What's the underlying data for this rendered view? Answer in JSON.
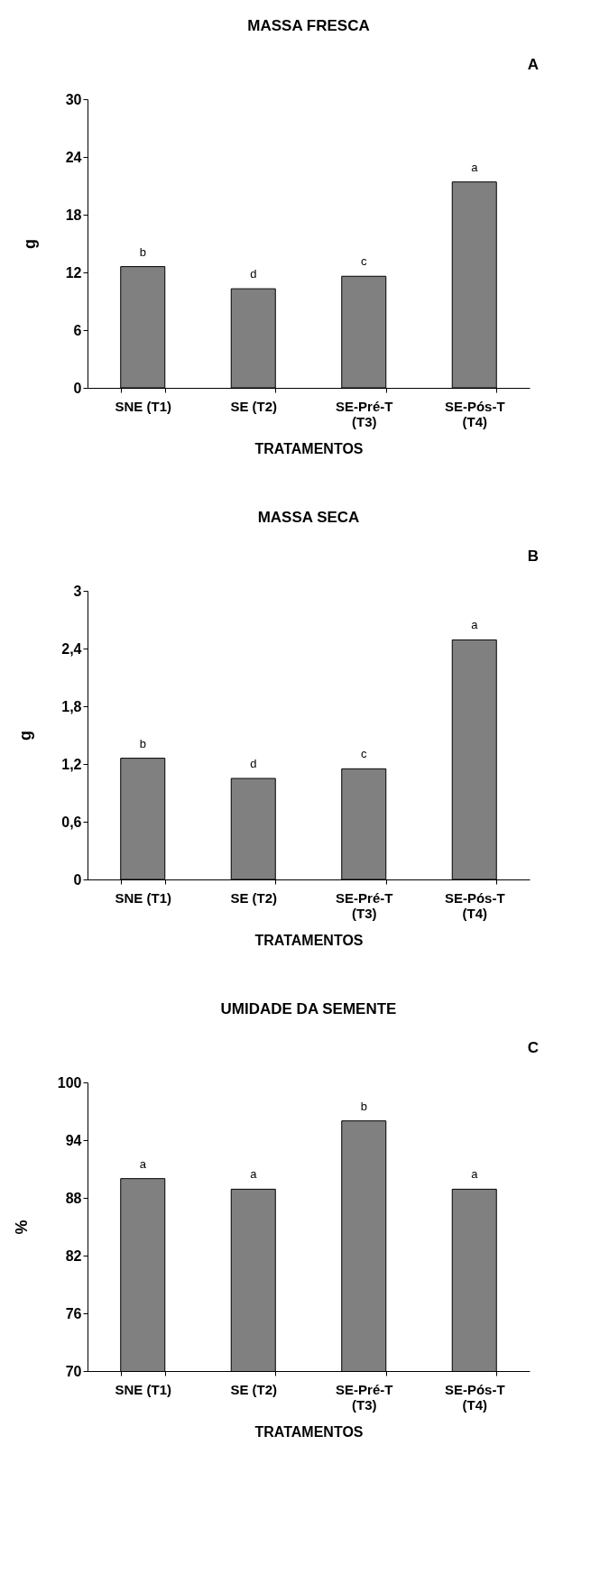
{
  "chart_data": [
    {
      "type": "bar",
      "title": "MASSA FRESCA",
      "xlabel": "TRATAMENTOS",
      "ylabel": "g",
      "categories": [
        "SNE (T1)",
        "SE (T2)",
        "SE-Pré-T (T3)",
        "SE-Pós-T (T4)"
      ],
      "values": [
        12.6,
        10.3,
        11.6,
        21.4
      ],
      "color": "#808080",
      "ylim": [
        0,
        30
      ],
      "yticks": [
        0,
        6,
        12,
        18,
        24,
        30
      ],
      "grid": false,
      "annotations": [
        "A",
        {
          "text": "b",
          "x": "SNE (T1)",
          "y": 12.6
        },
        {
          "text": "d",
          "x": "SE (T2)",
          "y": 10.3
        },
        {
          "text": "c",
          "x": "SE-Pré-T (T3)",
          "y": 11.6
        },
        {
          "text": "a",
          "x": "SE-Pós-T (T4)",
          "y": 21.4
        }
      ]
    },
    {
      "type": "bar",
      "title": "MASSA SECA",
      "xlabel": "TRATAMENTOS",
      "ylabel": "g",
      "categories": [
        "SNE (T1)",
        "SE (T2)",
        "SE-Pré-T (T3)",
        "SE-Pós-T (T4)"
      ],
      "values": [
        1.26,
        1.05,
        1.15,
        2.49
      ],
      "color": "#808080",
      "ylim": [
        0,
        3
      ],
      "yticks": [
        0,
        {
          "value": 0.6,
          "label": "0,6"
        },
        {
          "value": 1.2,
          "label": "1,2"
        },
        {
          "value": 1.8,
          "label": "1,8"
        },
        {
          "value": 2.4,
          "label": "2,4"
        },
        3
      ],
      "grid": false,
      "annotations": [
        "B",
        {
          "text": "b",
          "x": "SNE (T1)",
          "y": 1.26
        },
        {
          "text": "d",
          "x": "SE (T2)",
          "y": 1.05
        },
        {
          "text": "c",
          "x": "SE-Pré-T (T3)",
          "y": 1.15
        },
        {
          "text": "a",
          "x": "SE-Pós-T (T4)",
          "y": 2.49
        }
      ]
    },
    {
      "type": "bar",
      "title": "UMIDADE DA SEMENTE",
      "xlabel": "TRATAMENTOS",
      "ylabel": "%",
      "categories": [
        "SNE (T1)",
        "SE (T2)",
        "SE-Pré-T (T3)",
        "SE-Pós-T (T4)"
      ],
      "values": [
        90.0,
        88.9,
        96.0,
        88.9
      ],
      "color": "#808080",
      "ylim": [
        70,
        100
      ],
      "yticks": [
        70,
        76,
        82,
        88,
        94,
        100
      ],
      "grid": false,
      "annotations": [
        "C",
        {
          "text": "a",
          "x": "SNE (T1)",
          "y": 90.0
        },
        {
          "text": "a",
          "x": "SE (T2)",
          "y": 88.9
        },
        {
          "text": "b",
          "x": "SE-Pré-T (T3)",
          "y": 96.0
        },
        {
          "text": "a",
          "x": "SE-Pós-T (T4)",
          "y": 88.9
        }
      ]
    }
  ]
}
